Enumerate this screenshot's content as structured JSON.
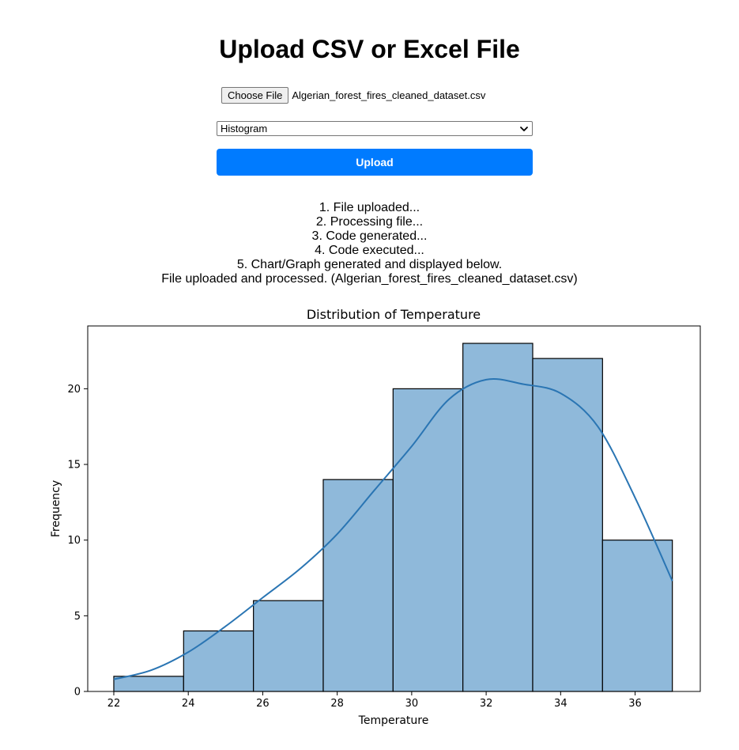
{
  "page": {
    "title": "Upload CSV or Excel File"
  },
  "file_input": {
    "button_label": "Choose File",
    "file_name": "Algerian_forest_fires_cleaned_dataset.csv"
  },
  "chart_type_select": {
    "selected": "Histogram"
  },
  "upload_button": {
    "label": "Upload"
  },
  "status": {
    "lines": [
      "1. File uploaded...",
      "2. Processing file...",
      "3. Code generated...",
      "4. Code executed...",
      "5. Chart/Graph generated and displayed below.",
      "File uploaded and processed. (Algerian_forest_fires_cleaned_dataset.csv)"
    ]
  },
  "chart_data": {
    "type": "bar",
    "title": "Distribution of Temperature",
    "xlabel": "Temperature",
    "ylabel": "Frequency",
    "bin_edges": [
      22,
      23.875,
      25.75,
      27.625,
      29.5,
      31.375,
      33.25,
      35.125,
      37
    ],
    "values": [
      1,
      4,
      6,
      14,
      20,
      23,
      22,
      10
    ],
    "xlim": [
      21.3,
      37.75
    ],
    "ylim": [
      0,
      24.15
    ],
    "xticks": [
      22,
      24,
      26,
      28,
      30,
      32,
      34,
      36
    ],
    "yticks": [
      0,
      5,
      10,
      15,
      20
    ],
    "grid": false,
    "bar_color": "#8fb9da",
    "edge_color": "#000000",
    "kde": {
      "color": "#2a75b3",
      "x": [
        22,
        23,
        24,
        25,
        26,
        27,
        28,
        29,
        30,
        31,
        32,
        33,
        34,
        35,
        36,
        37
      ],
      "y": [
        0.8,
        1.4,
        2.6,
        4.3,
        6.2,
        8.1,
        10.4,
        13.3,
        16.2,
        19.3,
        20.6,
        20.3,
        19.7,
        17.5,
        12.8,
        7.3
      ]
    }
  }
}
